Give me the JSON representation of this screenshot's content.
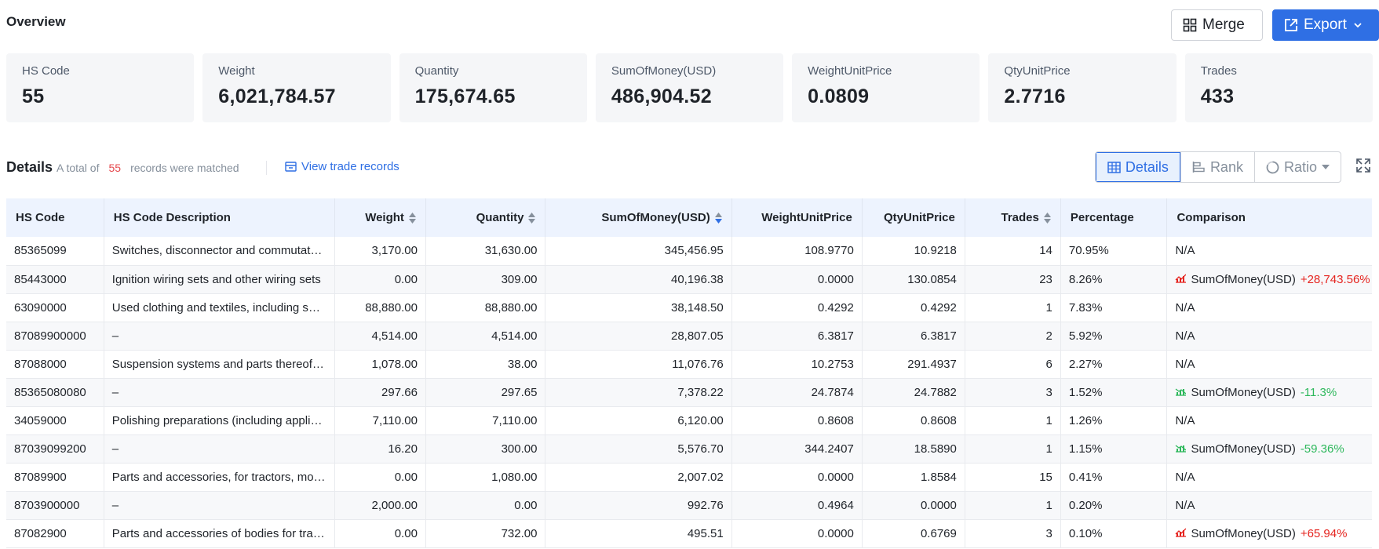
{
  "overview": {
    "title": "Overview",
    "merge_label": "Merge",
    "export_label": "Export"
  },
  "stats": [
    {
      "label": "HS Code",
      "value": "55"
    },
    {
      "label": "Weight",
      "value": "6,021,784.57"
    },
    {
      "label": "Quantity",
      "value": "175,674.65"
    },
    {
      "label": "SumOfMoney(USD)",
      "value": "486,904.52"
    },
    {
      "label": "WeightUnitPrice",
      "value": "0.0809"
    },
    {
      "label": "QtyUnitPrice",
      "value": "2.7716"
    },
    {
      "label": "Trades",
      "value": "433"
    }
  ],
  "details": {
    "title": "Details",
    "meta_prefix": "A total of",
    "count": "55",
    "meta_suffix": "records were matched",
    "view_link": "View trade records",
    "tabs": {
      "details": "Details",
      "rank": "Rank",
      "ratio": "Ratio"
    }
  },
  "table": {
    "headers": [
      "HS Code",
      "HS Code Description",
      "Weight",
      "Quantity",
      "SumOfMoney(USD)",
      "WeightUnitPrice",
      "QtyUnitPrice",
      "Trades",
      "Percentage",
      "Comparison"
    ],
    "rows": [
      {
        "code": "85365099",
        "desc": "Switches, disconnector and commutators",
        "weight": "3,170.00",
        "qty": "31,630.00",
        "sum": "345,456.95",
        "wup": "108.9770",
        "qup": "10.9218",
        "trades": "14",
        "pct": "70.95%",
        "cmp_text": "N/A",
        "cmp_change": "",
        "cmp_dir": ""
      },
      {
        "code": "85443000",
        "desc": "Ignition wiring sets and other wiring sets",
        "weight": "0.00",
        "qty": "309.00",
        "sum": "40,196.38",
        "wup": "0.0000",
        "qup": "130.0854",
        "trades": "23",
        "pct": "8.26%",
        "cmp_text": "SumOfMoney(USD)",
        "cmp_change": "+28,743.56%",
        "cmp_dir": "up"
      },
      {
        "code": "63090000",
        "desc": "Used clothing and textiles, including shoes",
        "weight": "88,880.00",
        "qty": "88,880.00",
        "sum": "38,148.50",
        "wup": "0.4292",
        "qup": "0.4292",
        "trades": "1",
        "pct": "7.83%",
        "cmp_text": "N/A",
        "cmp_change": "",
        "cmp_dir": ""
      },
      {
        "code": "87089900000",
        "desc": "–",
        "weight": "4,514.00",
        "qty": "4,514.00",
        "sum": "28,807.05",
        "wup": "6.3817",
        "qup": "6.3817",
        "trades": "2",
        "pct": "5.92%",
        "cmp_text": "N/A",
        "cmp_change": "",
        "cmp_dir": ""
      },
      {
        "code": "87088000",
        "desc": "Suspension systems and parts thereof (including shock absorbers)",
        "weight": "1,078.00",
        "qty": "38.00",
        "sum": "11,076.76",
        "wup": "10.2753",
        "qup": "291.4937",
        "trades": "6",
        "pct": "2.27%",
        "cmp_text": "N/A",
        "cmp_change": "",
        "cmp_dir": ""
      },
      {
        "code": "85365080080",
        "desc": "–",
        "weight": "297.66",
        "qty": "297.65",
        "sum": "7,378.22",
        "wup": "24.7874",
        "qup": "24.7882",
        "trades": "3",
        "pct": "1.52%",
        "cmp_text": "SumOfMoney(USD)",
        "cmp_change": "-11.3%",
        "cmp_dir": "down"
      },
      {
        "code": "34059000",
        "desc": "Polishing preparations (including applicators)",
        "weight": "7,110.00",
        "qty": "7,110.00",
        "sum": "6,120.00",
        "wup": "0.8608",
        "qup": "0.8608",
        "trades": "1",
        "pct": "1.26%",
        "cmp_text": "N/A",
        "cmp_change": "",
        "cmp_dir": ""
      },
      {
        "code": "87039099200",
        "desc": "–",
        "weight": "16.20",
        "qty": "300.00",
        "sum": "5,576.70",
        "wup": "344.2407",
        "qup": "18.5890",
        "trades": "1",
        "pct": "1.15%",
        "cmp_text": "SumOfMoney(USD)",
        "cmp_change": "-59.36%",
        "cmp_dir": "down"
      },
      {
        "code": "87089900",
        "desc": "Parts and accessories, for tractors, motor vehicles",
        "weight": "0.00",
        "qty": "1,080.00",
        "sum": "2,007.02",
        "wup": "0.0000",
        "qup": "1.8584",
        "trades": "15",
        "pct": "0.41%",
        "cmp_text": "N/A",
        "cmp_change": "",
        "cmp_dir": ""
      },
      {
        "code": "8703900000",
        "desc": "–",
        "weight": "2,000.00",
        "qty": "0.00",
        "sum": "992.76",
        "wup": "0.4964",
        "qup": "0.0000",
        "trades": "1",
        "pct": "0.20%",
        "cmp_text": "N/A",
        "cmp_change": "",
        "cmp_dir": ""
      },
      {
        "code": "87082900",
        "desc": "Parts and accessories of bodies for tractors",
        "weight": "0.00",
        "qty": "732.00",
        "sum": "495.51",
        "wup": "0.0000",
        "qup": "0.6769",
        "trades": "3",
        "pct": "0.10%",
        "cmp_text": "SumOfMoney(USD)",
        "cmp_change": "+65.94%",
        "cmp_dir": "up"
      }
    ]
  },
  "colors": {
    "accent": "#2f6fe4",
    "up": "#e5241f",
    "down": "#2eb85c",
    "count": "#e5484d"
  }
}
